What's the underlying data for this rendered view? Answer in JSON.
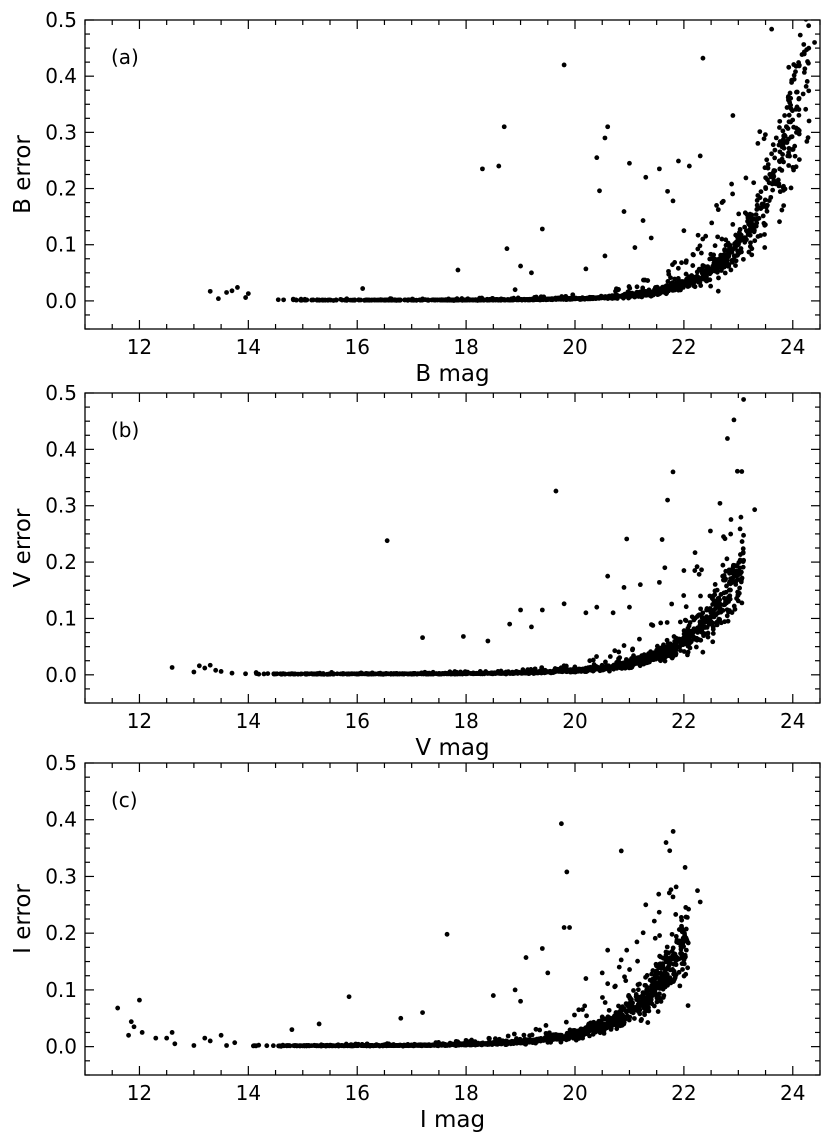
{
  "chart_data": [
    {
      "type": "scatter",
      "panel_label": "(a)",
      "xlabel": "B mag",
      "ylabel": "B error",
      "xlim": [
        11,
        24.5
      ],
      "ylim": [
        -0.05,
        0.5
      ],
      "xticks": [
        "12",
        "14",
        "16",
        "18",
        "20",
        "22",
        "24"
      ],
      "yticks": [
        "0.0",
        "0.1",
        "0.2",
        "0.3",
        "0.4",
        "0.5"
      ],
      "grid": false,
      "color": "#000000",
      "curve": {
        "m0": 24.2,
        "s0": 0.42,
        "k": 1.22,
        "xmin": 14.4,
        "xmax": 24.3
      },
      "points": [
        [
          13.3,
          0.017
        ],
        [
          13.45,
          0.004
        ],
        [
          13.6,
          0.015
        ],
        [
          13.7,
          0.018
        ],
        [
          13.8,
          0.024
        ],
        [
          13.95,
          0.006
        ],
        [
          14.0,
          0.013
        ],
        [
          16.1,
          0.022
        ],
        [
          17.85,
          0.055
        ],
        [
          18.3,
          0.235
        ],
        [
          18.6,
          0.24
        ],
        [
          18.7,
          0.31
        ],
        [
          18.75,
          0.093
        ],
        [
          19.4,
          0.128
        ],
        [
          19.8,
          0.42
        ],
        [
          20.4,
          0.255
        ],
        [
          20.45,
          0.196
        ],
        [
          20.55,
          0.29
        ],
        [
          20.6,
          0.31
        ],
        [
          21.0,
          0.245
        ],
        [
          21.3,
          0.22
        ],
        [
          21.55,
          0.235
        ],
        [
          21.7,
          0.195
        ],
        [
          21.8,
          0.178
        ],
        [
          21.9,
          0.249
        ],
        [
          22.1,
          0.24
        ],
        [
          22.3,
          0.258
        ],
        [
          22.35,
          0.432
        ],
        [
          22.9,
          0.33
        ],
        [
          22.7,
          0.175
        ],
        [
          22.6,
          0.17
        ],
        [
          24.4,
          0.46
        ],
        [
          24.05,
          0.408
        ],
        [
          23.95,
          0.37
        ],
        [
          23.85,
          0.33
        ],
        [
          20.9,
          0.159
        ],
        [
          21.25,
          0.143
        ],
        [
          19.0,
          0.062
        ],
        [
          19.2,
          0.05
        ],
        [
          18.9,
          0.02
        ],
        [
          20.2,
          0.057
        ],
        [
          20.55,
          0.08
        ],
        [
          21.4,
          0.112
        ],
        [
          21.1,
          0.095
        ],
        [
          22.0,
          0.125
        ]
      ]
    },
    {
      "type": "scatter",
      "panel_label": "(b)",
      "xlabel": "V mag",
      "ylabel": "V error",
      "xlim": [
        11,
        24.5
      ],
      "ylim": [
        -0.05,
        0.5
      ],
      "xticks": [
        "12",
        "14",
        "16",
        "18",
        "20",
        "22",
        "24"
      ],
      "yticks": [
        "0.0",
        "0.1",
        "0.2",
        "0.3",
        "0.4",
        "0.5"
      ],
      "grid": false,
      "color": "#000000",
      "curve": {
        "m0": 23.0,
        "s0": 0.18,
        "k": 1.12,
        "xmin": 13.9,
        "xmax": 23.1
      },
      "points": [
        [
          12.6,
          0.013
        ],
        [
          13.0,
          0.005
        ],
        [
          13.1,
          0.016
        ],
        [
          13.2,
          0.012
        ],
        [
          13.3,
          0.017
        ],
        [
          13.4,
          0.008
        ],
        [
          13.5,
          0.006
        ],
        [
          13.7,
          0.003
        ],
        [
          16.55,
          0.238
        ],
        [
          17.2,
          0.066
        ],
        [
          17.95,
          0.068
        ],
        [
          19.65,
          0.326
        ],
        [
          20.95,
          0.241
        ],
        [
          21.6,
          0.24
        ],
        [
          21.7,
          0.31
        ],
        [
          21.8,
          0.36
        ],
        [
          22.0,
          0.185
        ],
        [
          22.2,
          0.185
        ],
        [
          23.3,
          0.293
        ],
        [
          20.6,
          0.175
        ],
        [
          20.9,
          0.155
        ],
        [
          21.2,
          0.16
        ],
        [
          21.65,
          0.19
        ],
        [
          21.55,
          0.164
        ],
        [
          19.0,
          0.115
        ],
        [
          19.4,
          0.115
        ],
        [
          19.8,
          0.126
        ],
        [
          20.2,
          0.11
        ],
        [
          20.4,
          0.12
        ],
        [
          18.8,
          0.09
        ],
        [
          19.2,
          0.085
        ],
        [
          18.4,
          0.06
        ],
        [
          20.7,
          0.11
        ],
        [
          21.0,
          0.12
        ],
        [
          22.9,
          0.185
        ]
      ]
    },
    {
      "type": "scatter",
      "panel_label": "(c)",
      "xlabel": "I mag",
      "ylabel": "I error",
      "xlim": [
        11,
        24.5
      ],
      "ylim": [
        -0.05,
        0.5
      ],
      "xticks": [
        "12",
        "14",
        "16",
        "18",
        "20",
        "22",
        "24"
      ],
      "yticks": [
        "0.0",
        "0.1",
        "0.2",
        "0.3",
        "0.4",
        "0.5"
      ],
      "grid": false,
      "color": "#000000",
      "curve": {
        "m0": 22.0,
        "s0": 0.18,
        "k": 1.08,
        "xmin": 13.8,
        "xmax": 22.1
      },
      "points": [
        [
          11.6,
          0.068
        ],
        [
          11.8,
          0.02
        ],
        [
          11.85,
          0.044
        ],
        [
          11.9,
          0.035
        ],
        [
          12.0,
          0.082
        ],
        [
          12.05,
          0.025
        ],
        [
          12.3,
          0.015
        ],
        [
          12.5,
          0.015
        ],
        [
          12.6,
          0.025
        ],
        [
          12.65,
          0.005
        ],
        [
          13.0,
          0.002
        ],
        [
          13.2,
          0.015
        ],
        [
          13.3,
          0.01
        ],
        [
          13.5,
          0.02
        ],
        [
          13.6,
          0.002
        ],
        [
          13.75,
          0.007
        ],
        [
          15.85,
          0.088
        ],
        [
          17.65,
          0.198
        ],
        [
          19.75,
          0.393
        ],
        [
          19.85,
          0.308
        ],
        [
          19.8,
          0.21
        ],
        [
          19.9,
          0.21
        ],
        [
          20.85,
          0.345
        ],
        [
          21.3,
          0.25
        ],
        [
          21.8,
          0.264
        ],
        [
          21.85,
          0.233
        ],
        [
          22.0,
          0.153
        ],
        [
          22.25,
          0.275
        ],
        [
          22.3,
          0.255
        ],
        [
          20.6,
          0.17
        ],
        [
          20.95,
          0.17
        ],
        [
          19.4,
          0.173
        ],
        [
          19.1,
          0.157
        ],
        [
          19.5,
          0.13
        ],
        [
          20.2,
          0.12
        ],
        [
          20.5,
          0.13
        ],
        [
          18.9,
          0.1
        ],
        [
          18.5,
          0.09
        ],
        [
          19.0,
          0.08
        ],
        [
          17.2,
          0.06
        ],
        [
          16.8,
          0.05
        ],
        [
          15.3,
          0.04
        ],
        [
          14.8,
          0.03
        ]
      ]
    }
  ]
}
